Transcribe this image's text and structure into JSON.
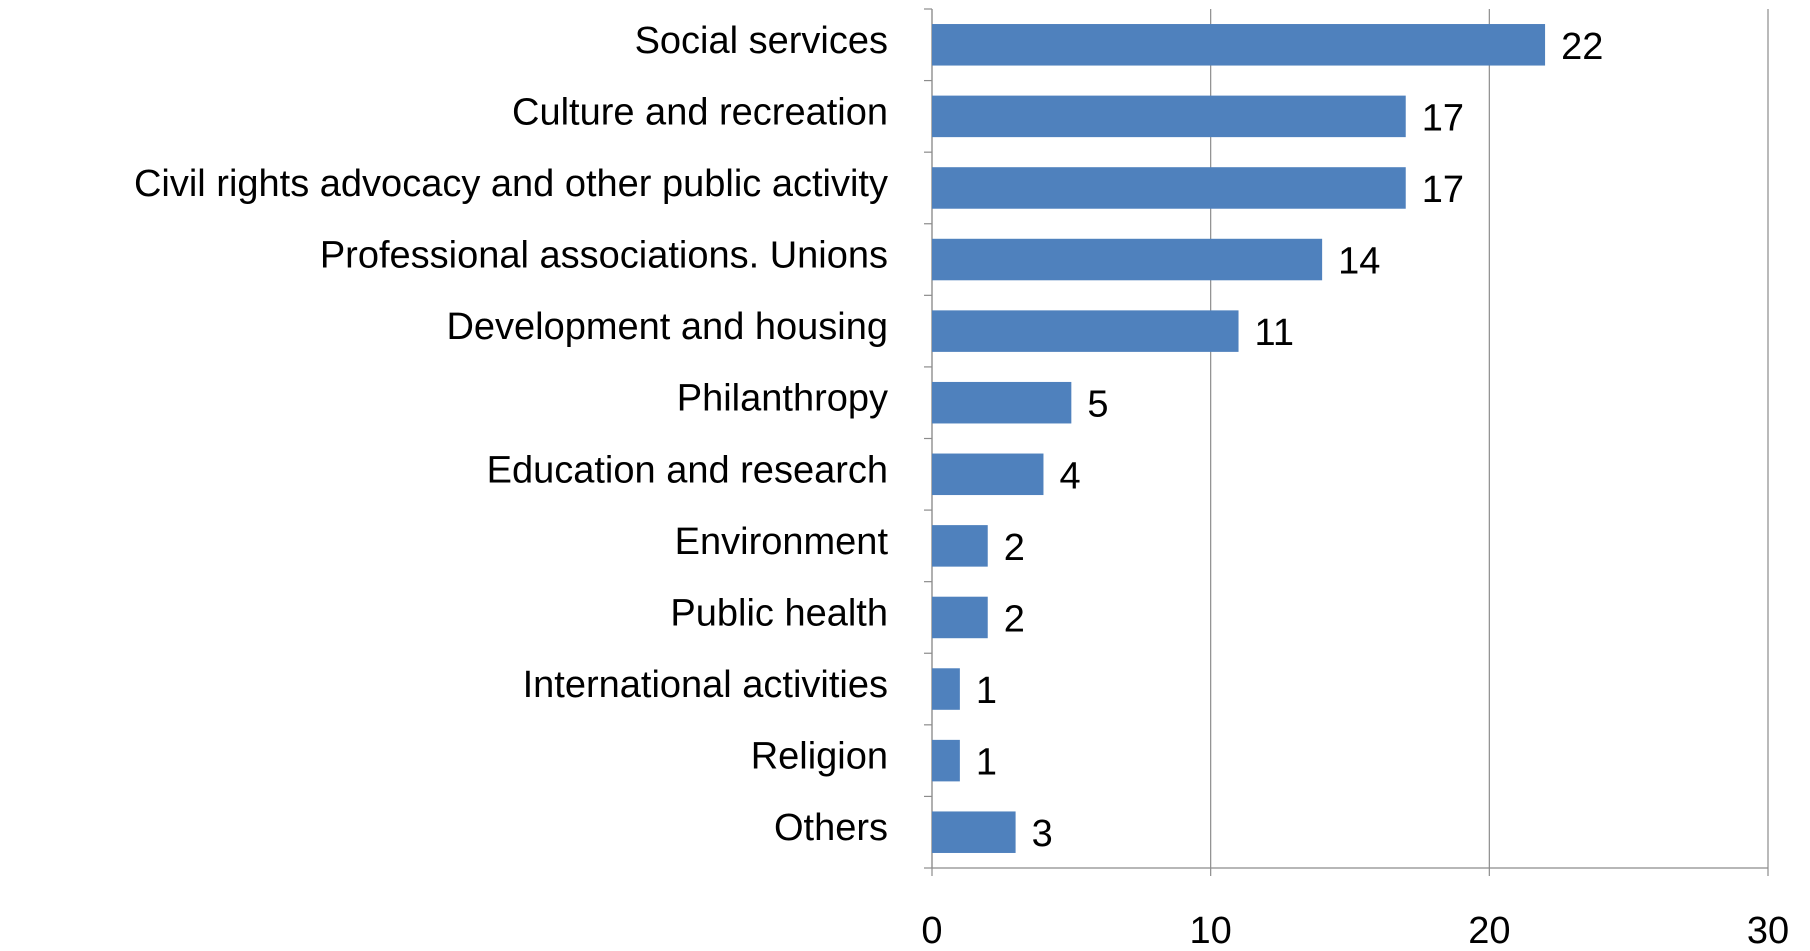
{
  "chart_data": {
    "type": "barh",
    "categories": [
      "Social services",
      "Culture and recreation",
      "Civil rights advocacy and other public activity",
      "Professional associations. Unions",
      "Development and housing",
      "Philanthropy",
      "Education and research",
      "Environment",
      "Public health",
      "International activities",
      "Religion",
      "Others"
    ],
    "values": [
      22,
      17,
      17,
      14,
      11,
      5,
      4,
      2,
      2,
      1,
      1,
      3
    ],
    "color": "#4f81bd",
    "xlim": [
      0,
      30
    ],
    "xticks": [
      0,
      10,
      20,
      30
    ],
    "grid": true
  }
}
